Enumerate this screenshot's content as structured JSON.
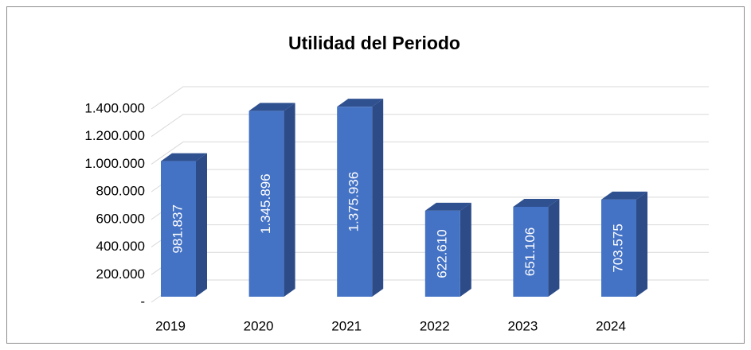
{
  "chart_data": {
    "type": "bar3d",
    "title": "Utilidad del Periodo",
    "categories": [
      "2019",
      "2020",
      "2021",
      "2022",
      "2023",
      "2024"
    ],
    "values": [
      981837,
      1345896,
      1375936,
      622610,
      651106,
      703575
    ],
    "value_labels": [
      "981.837",
      "1.345.896",
      "1.375.936",
      "622.610",
      "651.106",
      "703.575"
    ],
    "color": "#4472c4",
    "ylim": [
      0,
      1400000
    ],
    "yticks": [
      {
        "value": 0,
        "label": "-"
      },
      {
        "value": 200000,
        "label": "200.000"
      },
      {
        "value": 400000,
        "label": "400.000"
      },
      {
        "value": 600000,
        "label": "600.000"
      },
      {
        "value": 800000,
        "label": "800.000"
      },
      {
        "value": 1000000,
        "label": "1.000.000"
      },
      {
        "value": 1200000,
        "label": "1.200.000"
      },
      {
        "value": 1400000,
        "label": "1.400.000"
      }
    ],
    "grid": true
  }
}
